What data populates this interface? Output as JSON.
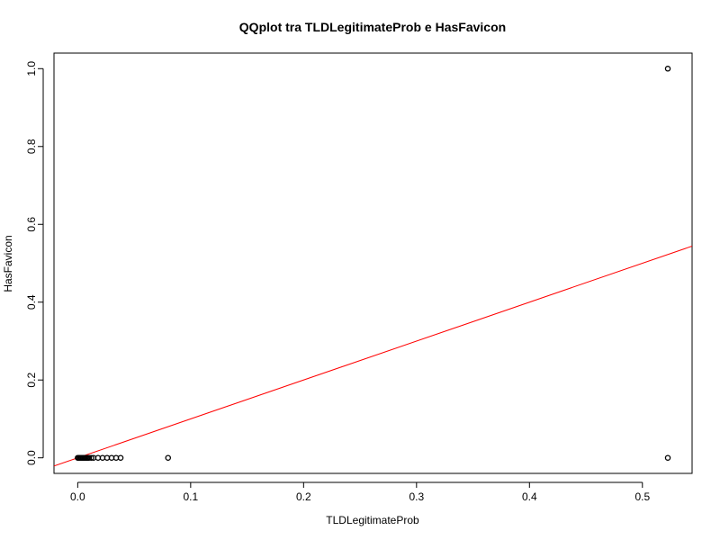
{
  "chart_data": {
    "type": "scatter",
    "title": "QQplot tra TLDLegitimateProb e HasFavicon",
    "xlabel": "TLDLegitimateProb",
    "ylabel": "HasFavicon",
    "xlim": [
      -0.021,
      0.544
    ],
    "ylim": [
      -0.04,
      1.04
    ],
    "xticks": [
      0.0,
      0.1,
      0.2,
      0.3,
      0.4,
      0.5
    ],
    "xtick_labels": [
      "0.0",
      "0.1",
      "0.2",
      "0.3",
      "0.4",
      "0.5"
    ],
    "yticks": [
      0.0,
      0.2,
      0.4,
      0.6,
      0.8,
      1.0
    ],
    "ytick_labels": [
      "0.0",
      "0.2",
      "0.4",
      "0.6",
      "0.8",
      "1.0"
    ],
    "grid": false,
    "point_color": "#000000",
    "line_color": "#ff0000",
    "points": [
      {
        "x": 0.0,
        "y": 0
      },
      {
        "x": 0.001,
        "y": 0
      },
      {
        "x": 0.002,
        "y": 0
      },
      {
        "x": 0.003,
        "y": 0
      },
      {
        "x": 0.004,
        "y": 0
      },
      {
        "x": 0.005,
        "y": 0
      },
      {
        "x": 0.006,
        "y": 0
      },
      {
        "x": 0.007,
        "y": 0
      },
      {
        "x": 0.008,
        "y": 0
      },
      {
        "x": 0.009,
        "y": 0
      },
      {
        "x": 0.01,
        "y": 0
      },
      {
        "x": 0.012,
        "y": 0
      },
      {
        "x": 0.014,
        "y": 0
      },
      {
        "x": 0.018,
        "y": 0
      },
      {
        "x": 0.022,
        "y": 0
      },
      {
        "x": 0.026,
        "y": 0
      },
      {
        "x": 0.03,
        "y": 0
      },
      {
        "x": 0.034,
        "y": 0
      },
      {
        "x": 0.038,
        "y": 0
      },
      {
        "x": 0.08,
        "y": 0
      },
      {
        "x": 0.5225,
        "y": 0
      },
      {
        "x": 0.5225,
        "y": 1
      }
    ],
    "reference_line": {
      "slope": 1,
      "intercept": 0
    }
  }
}
